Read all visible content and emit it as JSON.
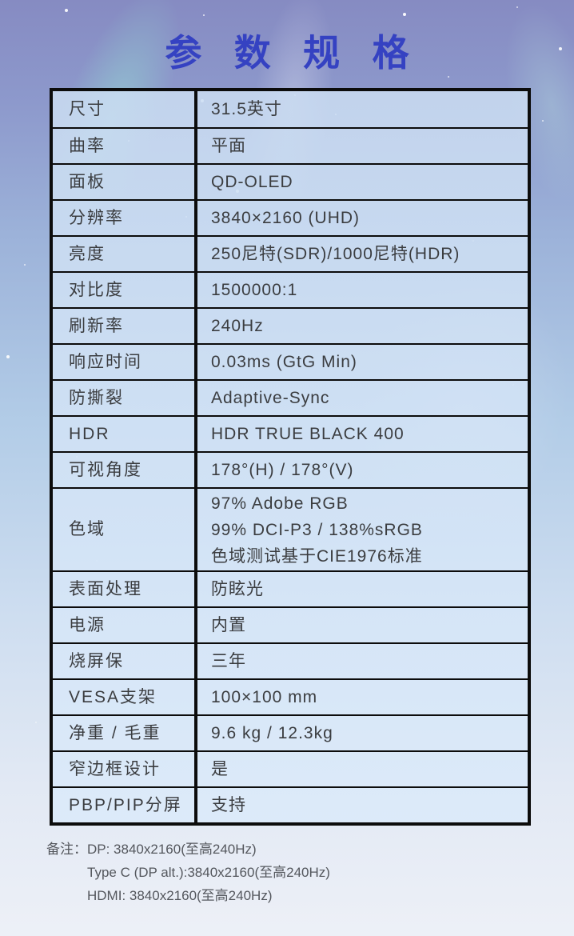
{
  "title": "参 数 规 格",
  "colors": {
    "title_blue": "#3542c2",
    "table_border": "#0c0c0c",
    "cell_fill": "#d4e4f6",
    "text": "#3b3d40"
  },
  "table": {
    "rows": [
      {
        "label": "尺寸",
        "values": [
          "31.5英寸"
        ]
      },
      {
        "label": "曲率",
        "values": [
          "平面"
        ]
      },
      {
        "label": "面板",
        "values": [
          "QD-OLED"
        ]
      },
      {
        "label": "分辨率",
        "values": [
          "3840×2160 (UHD)"
        ]
      },
      {
        "label": "亮度",
        "values": [
          "250尼特(SDR)/1000尼特(HDR)"
        ]
      },
      {
        "label": "对比度",
        "values": [
          "1500000:1"
        ]
      },
      {
        "label": "刷新率",
        "values": [
          "240Hz"
        ]
      },
      {
        "label": "响应时间",
        "values": [
          "0.03ms (GtG Min)"
        ]
      },
      {
        "label": "防撕裂",
        "values": [
          "Adaptive-Sync"
        ]
      },
      {
        "label": "HDR",
        "values": [
          "HDR TRUE BLACK 400"
        ]
      },
      {
        "label": "可视角度",
        "values": [
          "178°(H) / 178°(V)"
        ]
      },
      {
        "label": "色域",
        "values": [
          "97% Adobe RGB",
          "99% DCI-P3 / 138%sRGB",
          "色域测试基于CIE1976标准"
        ]
      },
      {
        "label": "表面处理",
        "values": [
          "防眩光"
        ]
      },
      {
        "label": "电源",
        "values": [
          "内置"
        ]
      },
      {
        "label": "烧屏保",
        "values": [
          "三年"
        ]
      },
      {
        "label": "VESA支架",
        "values": [
          "100×100 mm"
        ]
      },
      {
        "label": "净重 / 毛重",
        "values": [
          "9.6 kg / 12.3kg"
        ]
      },
      {
        "label": "窄边框设计",
        "values": [
          "是"
        ]
      },
      {
        "label": "PBP/PIP分屏",
        "values": [
          "支持"
        ]
      }
    ]
  },
  "footer": {
    "label": "备注：",
    "lines": [
      "DP: 3840x2160(至高240Hz)",
      "Type C (DP alt.):3840x2160(至高240Hz)",
      "HDMI: 3840x2160(至高240Hz)"
    ]
  }
}
